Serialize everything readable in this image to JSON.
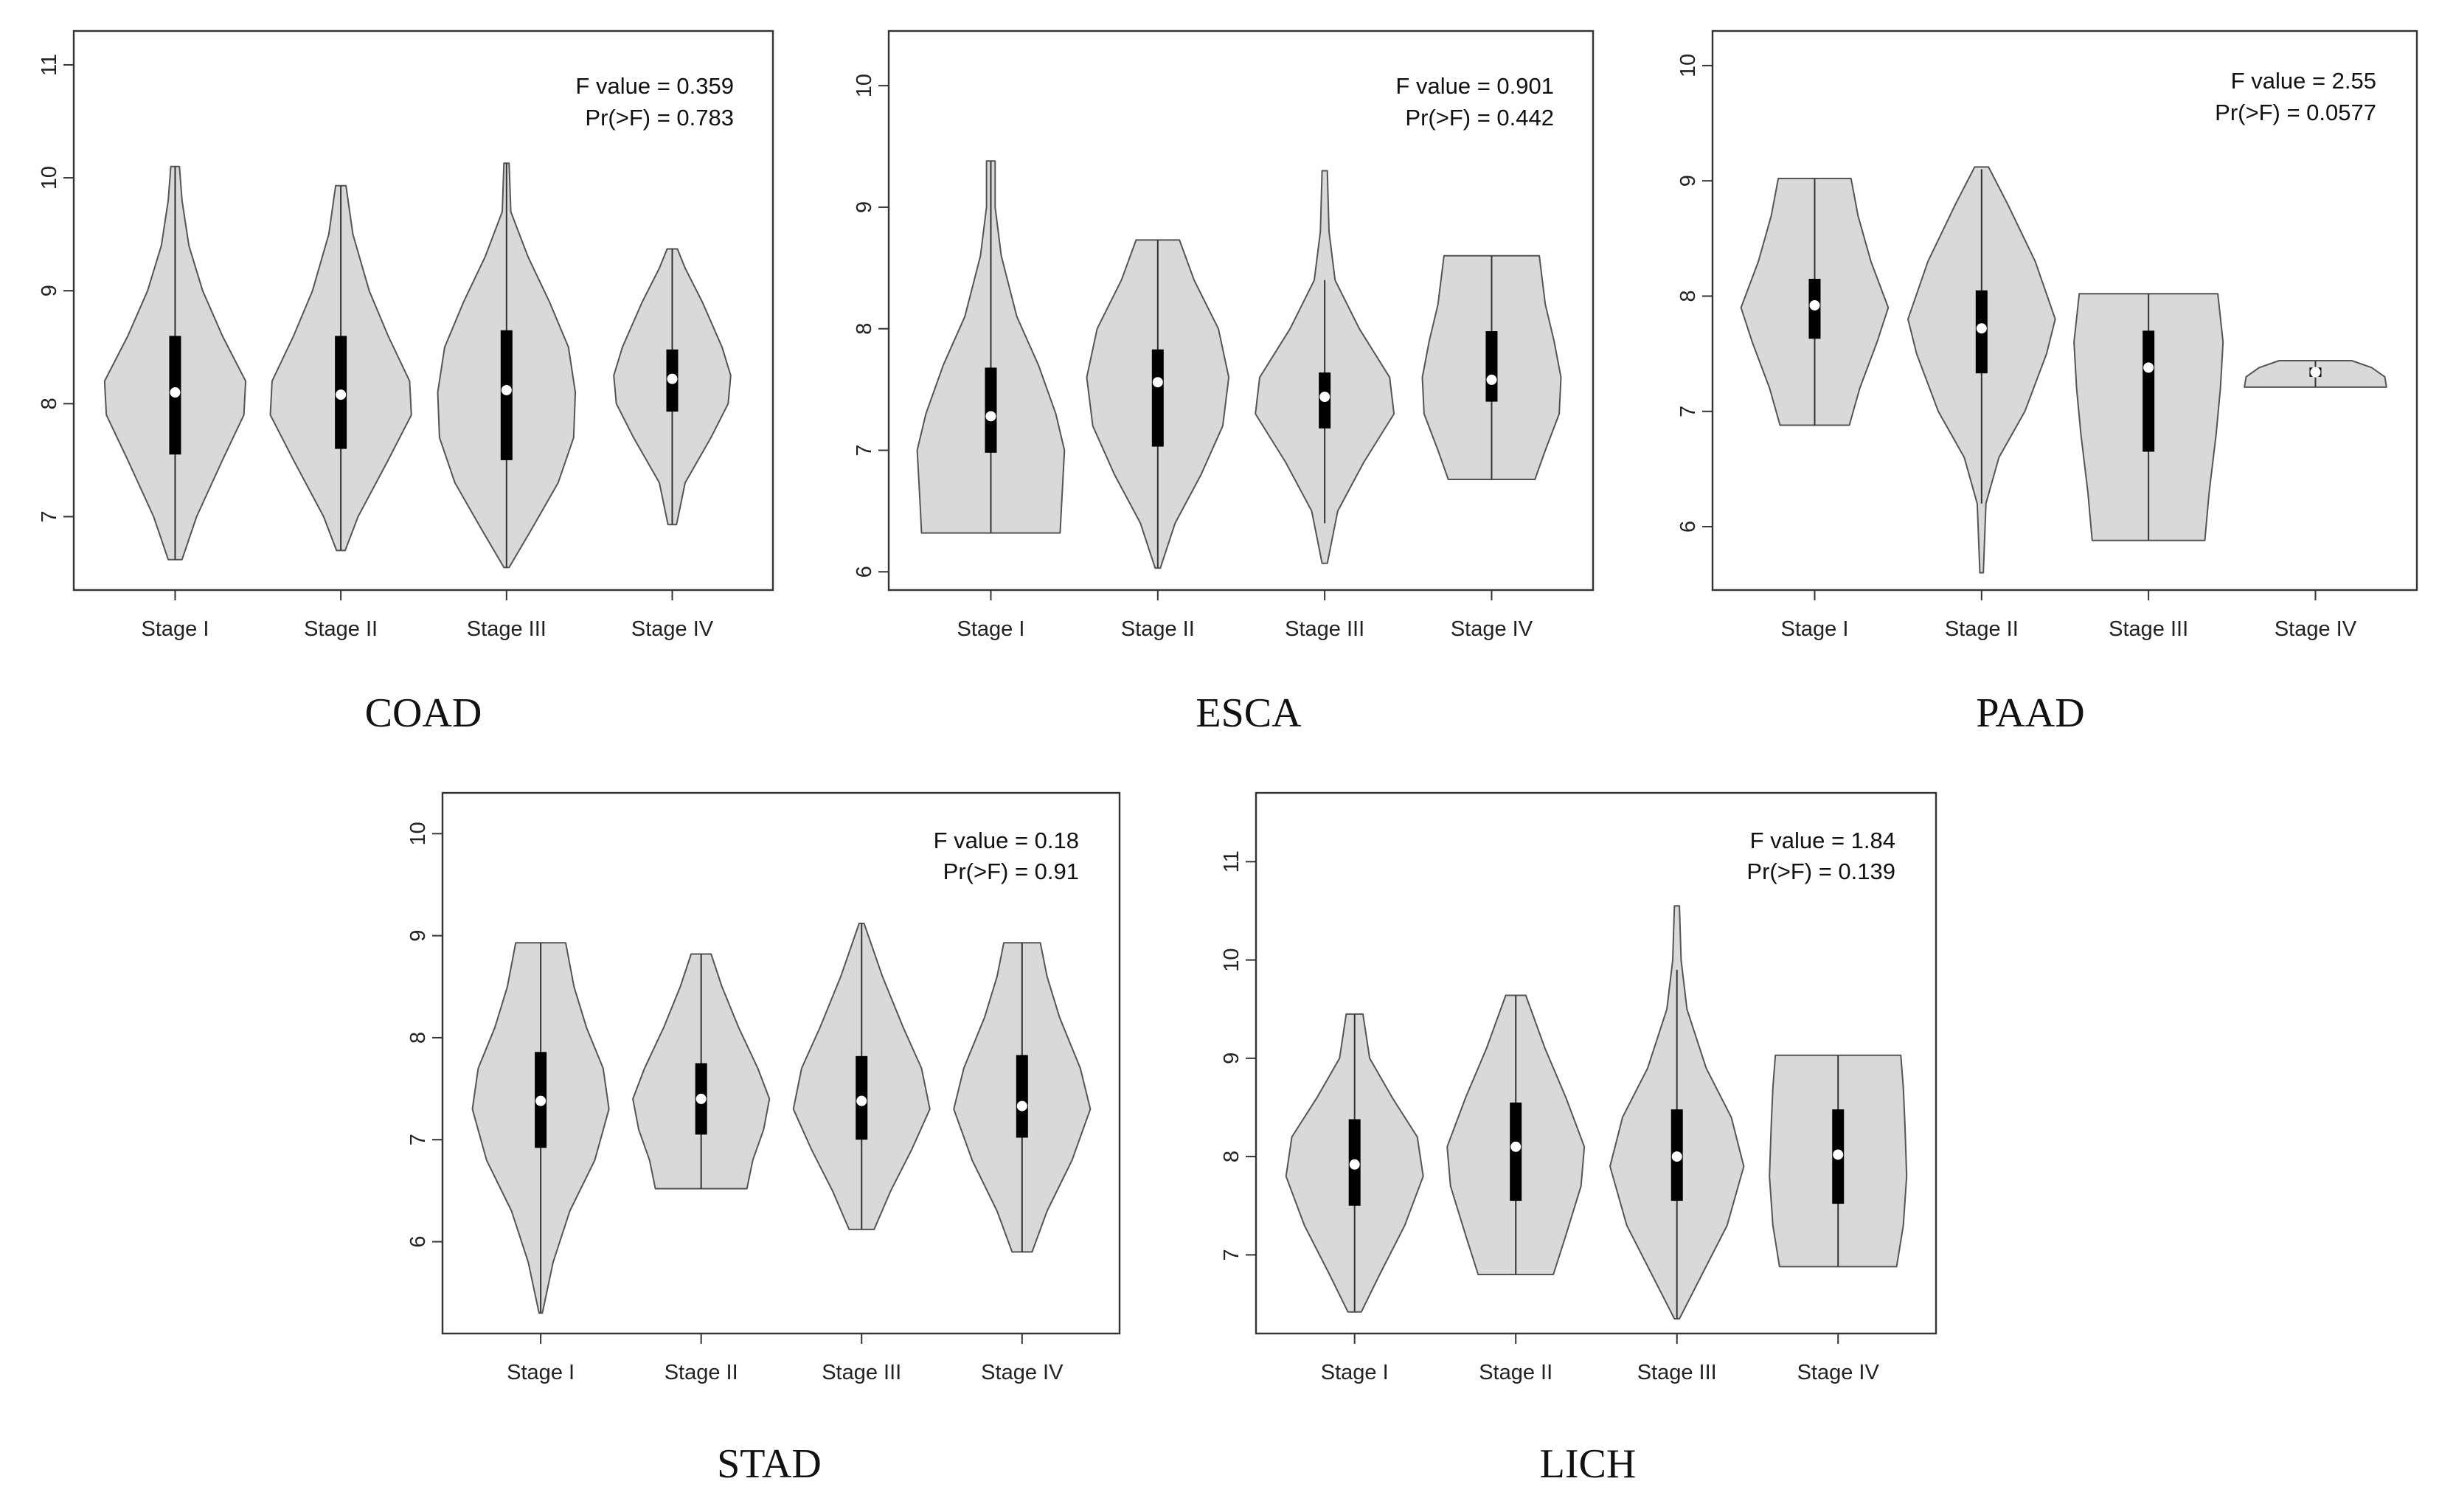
{
  "chart_data": [
    {
      "type": "violin",
      "title": "COAD",
      "stats": {
        "f_label": "F value = 0.359",
        "p_label": "Pr(>F) = 0.783"
      },
      "categories": [
        "Stage I",
        "Stage II",
        "Stage III",
        "Stage IV"
      ],
      "ylim": [
        6.35,
        11.3
      ],
      "yticks": [
        7,
        8,
        9,
        10,
        11
      ],
      "violins": [
        {
          "min": 6.62,
          "max": 10.1,
          "q1": 7.55,
          "median": 8.1,
          "q3": 8.6,
          "whisker_low": 6.62,
          "whisker_high": 10.1,
          "profile": [
            [
              6.62,
              0.08
            ],
            [
              7.0,
              0.25
            ],
            [
              7.5,
              0.55
            ],
            [
              7.9,
              0.8
            ],
            [
              8.2,
              0.82
            ],
            [
              8.6,
              0.55
            ],
            [
              9.0,
              0.32
            ],
            [
              9.4,
              0.16
            ],
            [
              9.8,
              0.08
            ],
            [
              10.1,
              0.05
            ]
          ]
        },
        {
          "min": 6.7,
          "max": 9.93,
          "q1": 7.6,
          "median": 8.08,
          "q3": 8.6,
          "whisker_low": 6.7,
          "whisker_high": 9.93,
          "profile": [
            [
              6.7,
              0.05
            ],
            [
              7.0,
              0.2
            ],
            [
              7.5,
              0.55
            ],
            [
              7.9,
              0.82
            ],
            [
              8.2,
              0.8
            ],
            [
              8.6,
              0.55
            ],
            [
              9.0,
              0.33
            ],
            [
              9.5,
              0.14
            ],
            [
              9.93,
              0.06
            ]
          ]
        },
        {
          "min": 6.55,
          "max": 10.13,
          "q1": 7.5,
          "median": 8.12,
          "q3": 8.65,
          "whisker_low": 6.55,
          "whisker_high": 10.13,
          "profile": [
            [
              6.55,
              0.03
            ],
            [
              6.9,
              0.3
            ],
            [
              7.3,
              0.6
            ],
            [
              7.7,
              0.78
            ],
            [
              8.1,
              0.8
            ],
            [
              8.5,
              0.72
            ],
            [
              8.9,
              0.5
            ],
            [
              9.3,
              0.25
            ],
            [
              9.7,
              0.05
            ],
            [
              10.13,
              0.03
            ]
          ]
        },
        {
          "min": 6.93,
          "max": 9.37,
          "q1": 7.93,
          "median": 8.22,
          "q3": 8.48,
          "whisker_low": 6.93,
          "whisker_high": 9.37,
          "profile": [
            [
              6.93,
              0.05
            ],
            [
              7.3,
              0.15
            ],
            [
              7.7,
              0.45
            ],
            [
              8.0,
              0.65
            ],
            [
              8.25,
              0.68
            ],
            [
              8.5,
              0.58
            ],
            [
              8.9,
              0.35
            ],
            [
              9.2,
              0.15
            ],
            [
              9.37,
              0.06
            ]
          ]
        }
      ]
    },
    {
      "type": "violin",
      "title": "ESCA",
      "stats": {
        "f_label": "F value = 0.901",
        "p_label": "Pr(>F) = 0.442"
      },
      "categories": [
        "Stage I",
        "Stage II",
        "Stage III",
        "Stage IV"
      ],
      "ylim": [
        5.85,
        10.45
      ],
      "yticks": [
        6,
        7,
        8,
        9,
        10
      ],
      "violins": [
        {
          "min": 6.32,
          "max": 9.38,
          "q1": 6.98,
          "median": 7.28,
          "q3": 7.68,
          "whisker_low": 6.32,
          "whisker_high": 9.38,
          "profile": [
            [
              6.32,
              0.8
            ],
            [
              6.6,
              0.82
            ],
            [
              7.0,
              0.85
            ],
            [
              7.3,
              0.75
            ],
            [
              7.7,
              0.55
            ],
            [
              8.1,
              0.3
            ],
            [
              8.6,
              0.12
            ],
            [
              9.0,
              0.05
            ],
            [
              9.38,
              0.05
            ]
          ]
        },
        {
          "min": 6.03,
          "max": 8.73,
          "q1": 7.03,
          "median": 7.56,
          "q3": 7.83,
          "whisker_low": 6.03,
          "whisker_high": 8.73,
          "profile": [
            [
              6.03,
              0.03
            ],
            [
              6.4,
              0.2
            ],
            [
              6.8,
              0.5
            ],
            [
              7.2,
              0.75
            ],
            [
              7.6,
              0.82
            ],
            [
              8.0,
              0.7
            ],
            [
              8.4,
              0.42
            ],
            [
              8.73,
              0.25
            ]
          ]
        },
        {
          "min": 6.07,
          "max": 9.3,
          "q1": 7.18,
          "median": 7.44,
          "q3": 7.64,
          "whisker_low": 6.4,
          "whisker_high": 8.4,
          "profile": [
            [
              6.07,
              0.03
            ],
            [
              6.5,
              0.15
            ],
            [
              6.9,
              0.45
            ],
            [
              7.3,
              0.8
            ],
            [
              7.6,
              0.75
            ],
            [
              8.0,
              0.4
            ],
            [
              8.4,
              0.12
            ],
            [
              8.8,
              0.05
            ],
            [
              9.3,
              0.03
            ]
          ]
        },
        {
          "min": 6.76,
          "max": 8.6,
          "q1": 7.4,
          "median": 7.58,
          "q3": 7.98,
          "whisker_low": 6.76,
          "whisker_high": 8.6,
          "profile": [
            [
              6.76,
              0.5
            ],
            [
              7.0,
              0.62
            ],
            [
              7.3,
              0.78
            ],
            [
              7.6,
              0.8
            ],
            [
              7.9,
              0.72
            ],
            [
              8.2,
              0.62
            ],
            [
              8.6,
              0.55
            ]
          ]
        }
      ]
    },
    {
      "type": "violin",
      "title": "PAAD",
      "stats": {
        "f_label": "F value = 2.55",
        "p_label": "Pr(>F) = 0.0577"
      },
      "categories": [
        "Stage I",
        "Stage II",
        "Stage III",
        "Stage IV"
      ],
      "ylim": [
        5.45,
        10.3
      ],
      "yticks": [
        6,
        7,
        8,
        9,
        10
      ],
      "violins": [
        {
          "min": 6.88,
          "max": 9.02,
          "q1": 7.63,
          "median": 7.92,
          "q3": 8.15,
          "whisker_low": 6.88,
          "whisker_high": 9.02,
          "profile": [
            [
              6.88,
              0.4
            ],
            [
              7.2,
              0.52
            ],
            [
              7.6,
              0.72
            ],
            [
              7.9,
              0.85
            ],
            [
              8.3,
              0.65
            ],
            [
              8.7,
              0.5
            ],
            [
              9.02,
              0.42
            ]
          ]
        },
        {
          "min": 5.6,
          "max": 9.12,
          "q1": 7.33,
          "median": 7.72,
          "q3": 8.05,
          "whisker_low": 6.2,
          "whisker_high": 9.1,
          "profile": [
            [
              5.6,
              0.02
            ],
            [
              6.2,
              0.05
            ],
            [
              6.6,
              0.2
            ],
            [
              7.0,
              0.5
            ],
            [
              7.5,
              0.75
            ],
            [
              7.8,
              0.85
            ],
            [
              8.3,
              0.62
            ],
            [
              8.8,
              0.3
            ],
            [
              9.12,
              0.08
            ]
          ]
        },
        {
          "min": 5.88,
          "max": 8.02,
          "q1": 6.65,
          "median": 7.38,
          "q3": 7.7,
          "whisker_low": 5.88,
          "whisker_high": 8.02,
          "profile": [
            [
              5.88,
              0.65
            ],
            [
              6.3,
              0.7
            ],
            [
              6.8,
              0.78
            ],
            [
              7.2,
              0.83
            ],
            [
              7.6,
              0.86
            ],
            [
              8.02,
              0.8
            ]
          ]
        },
        {
          "min": 7.21,
          "max": 7.44,
          "q1": 7.3,
          "median": 7.34,
          "q3": 7.38,
          "whisker_low": 7.21,
          "whisker_high": 7.44,
          "profile": [
            [
              7.21,
              0.82
            ],
            [
              7.3,
              0.8
            ],
            [
              7.38,
              0.65
            ],
            [
              7.44,
              0.42
            ]
          ]
        }
      ]
    },
    {
      "type": "violin",
      "title": "STAD",
      "stats": {
        "f_label": "F value = 0.18",
        "p_label": "Pr(>F) = 0.91"
      },
      "categories": [
        "Stage I",
        "Stage II",
        "Stage III",
        "Stage IV"
      ],
      "ylim": [
        5.1,
        10.4
      ],
      "yticks": [
        6,
        7,
        8,
        9,
        10
      ],
      "violins": [
        {
          "min": 5.3,
          "max": 8.93,
          "q1": 6.92,
          "median": 7.38,
          "q3": 7.86,
          "whisker_low": 5.3,
          "whisker_high": 8.93,
          "profile": [
            [
              5.3,
              0.02
            ],
            [
              5.8,
              0.15
            ],
            [
              6.3,
              0.35
            ],
            [
              6.8,
              0.65
            ],
            [
              7.3,
              0.82
            ],
            [
              7.7,
              0.75
            ],
            [
              8.1,
              0.55
            ],
            [
              8.5,
              0.4
            ],
            [
              8.93,
              0.3
            ]
          ]
        },
        {
          "min": 6.52,
          "max": 8.82,
          "q1": 7.05,
          "median": 7.4,
          "q3": 7.75,
          "whisker_low": 6.52,
          "whisker_high": 8.82,
          "profile": [
            [
              6.52,
              0.55
            ],
            [
              6.8,
              0.62
            ],
            [
              7.1,
              0.75
            ],
            [
              7.4,
              0.82
            ],
            [
              7.7,
              0.68
            ],
            [
              8.1,
              0.45
            ],
            [
              8.5,
              0.25
            ],
            [
              8.82,
              0.12
            ]
          ]
        },
        {
          "min": 6.12,
          "max": 9.12,
          "q1": 7.0,
          "median": 7.38,
          "q3": 7.82,
          "whisker_low": 6.12,
          "whisker_high": 9.12,
          "profile": [
            [
              6.12,
              0.15
            ],
            [
              6.5,
              0.35
            ],
            [
              6.9,
              0.6
            ],
            [
              7.3,
              0.82
            ],
            [
              7.7,
              0.72
            ],
            [
              8.1,
              0.5
            ],
            [
              8.6,
              0.25
            ],
            [
              9.12,
              0.03
            ]
          ]
        },
        {
          "min": 5.9,
          "max": 8.93,
          "q1": 7.02,
          "median": 7.33,
          "q3": 7.83,
          "whisker_low": 5.9,
          "whisker_high": 8.93,
          "profile": [
            [
              5.9,
              0.12
            ],
            [
              6.3,
              0.3
            ],
            [
              6.8,
              0.6
            ],
            [
              7.3,
              0.82
            ],
            [
              7.7,
              0.7
            ],
            [
              8.2,
              0.45
            ],
            [
              8.6,
              0.3
            ],
            [
              8.93,
              0.22
            ]
          ]
        }
      ]
    },
    {
      "type": "violin",
      "title": "LICH",
      "stats": {
        "f_label": "F value = 1.84",
        "p_label": "Pr(>F) = 0.139"
      },
      "categories": [
        "Stage I",
        "Stage II",
        "Stage III",
        "Stage IV"
      ],
      "ylim": [
        6.2,
        11.7
      ],
      "yticks": [
        7,
        8,
        9,
        10,
        11
      ],
      "violins": [
        {
          "min": 6.42,
          "max": 9.45,
          "q1": 7.5,
          "median": 7.92,
          "q3": 8.38,
          "whisker_low": 6.42,
          "whisker_high": 9.45,
          "profile": [
            [
              6.42,
              0.08
            ],
            [
              6.8,
              0.3
            ],
            [
              7.3,
              0.6
            ],
            [
              7.8,
              0.82
            ],
            [
              8.2,
              0.75
            ],
            [
              8.6,
              0.45
            ],
            [
              9.0,
              0.18
            ],
            [
              9.45,
              0.1
            ]
          ]
        },
        {
          "min": 6.8,
          "max": 9.64,
          "q1": 7.55,
          "median": 8.1,
          "q3": 8.55,
          "whisker_low": 6.8,
          "whisker_high": 9.64,
          "profile": [
            [
              6.8,
              0.45
            ],
            [
              7.2,
              0.6
            ],
            [
              7.7,
              0.78
            ],
            [
              8.1,
              0.82
            ],
            [
              8.6,
              0.6
            ],
            [
              9.1,
              0.35
            ],
            [
              9.64,
              0.12
            ]
          ]
        },
        {
          "min": 6.35,
          "max": 10.55,
          "q1": 7.55,
          "median": 8.0,
          "q3": 8.48,
          "whisker_low": 6.35,
          "whisker_high": 9.9,
          "profile": [
            [
              6.35,
              0.03
            ],
            [
              6.8,
              0.3
            ],
            [
              7.3,
              0.6
            ],
            [
              7.9,
              0.8
            ],
            [
              8.4,
              0.65
            ],
            [
              8.9,
              0.35
            ],
            [
              9.5,
              0.12
            ],
            [
              10.0,
              0.05
            ],
            [
              10.55,
              0.03
            ]
          ]
        },
        {
          "min": 6.88,
          "max": 9.03,
          "q1": 7.52,
          "median": 8.02,
          "q3": 8.48,
          "whisker_low": 6.88,
          "whisker_high": 9.03,
          "profile": [
            [
              6.88,
              0.7
            ],
            [
              7.3,
              0.78
            ],
            [
              7.8,
              0.82
            ],
            [
              8.3,
              0.8
            ],
            [
              8.7,
              0.78
            ],
            [
              9.03,
              0.75
            ]
          ]
        }
      ]
    }
  ]
}
